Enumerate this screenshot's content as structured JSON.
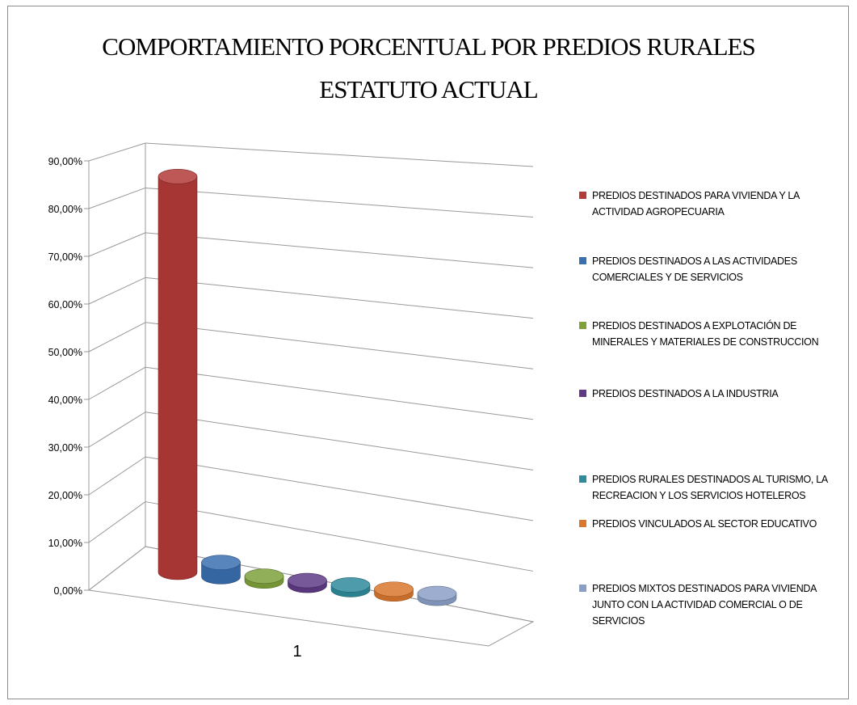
{
  "chart_data": {
    "type": "bar",
    "title_line1": "COMPORTAMIENTO PORCENTUAL  POR PREDIOS RURALES",
    "title_line2": "ESTATUTO ACTUAL",
    "categories": [
      "1"
    ],
    "ylim": [
      0,
      0.9
    ],
    "yticks": [
      "0,00%",
      "10,00%",
      "20,00%",
      "30,00%",
      "40,00%",
      "50,00%",
      "60,00%",
      "70,00%",
      "80,00%",
      "90,00%"
    ],
    "grid": true,
    "legend_position": "right",
    "series": [
      {
        "name": "PREDIOS DESTINADOS PARA VIVIENDA Y LA ACTIVIDAD AGROPECUARIA",
        "legend_lines": [
          "PREDIOS DESTINADOS PARA VIVIENDA Y LA",
          "ACTIVIDAD AGROPECUARIA"
        ],
        "values": [
          0.83
        ],
        "color": "#b33b38"
      },
      {
        "name": "PREDIOS DESTINADOS A LAS ACTIVIDADES COMERCIALES Y DE SERVICIOS",
        "legend_lines": [
          "PREDIOS DESTINADOS A LAS ACTIVIDADES",
          "COMERCIALES Y DE SERVICIOS"
        ],
        "values": [
          0.03
        ],
        "color": "#3a6fb0"
      },
      {
        "name": "PREDIOS DESTINADOS A EXPLOTACIÓN DE MINERALES Y MATERIALES DE CONSTRUCCION",
        "legend_lines": [
          "PREDIOS DESTINADOS A EXPLOTACIÓN DE",
          "MINERALES Y MATERIALES DE CONSTRUCCION"
        ],
        "values": [
          0.005
        ],
        "color": "#7ea13a"
      },
      {
        "name": "PREDIOS DESTINADOS A LA INDUSTRIA",
        "legend_lines": [
          "PREDIOS DESTINADOS A LA INDUSTRIA"
        ],
        "values": [
          0.005
        ],
        "color": "#5f3b86"
      },
      {
        "name": "PREDIOS RURALES DESTINADOS AL TURISMO, LA RECREACION Y LOS SERVICIOS HOTELEROS",
        "legend_lines": [
          "PREDIOS RURALES DESTINADOS AL TURISMO, LA",
          "RECREACION Y LOS SERVICIOS HOTELEROS"
        ],
        "values": [
          0.005
        ],
        "color": "#2f8b9c"
      },
      {
        "name": "PREDIOS VINCULADOS AL SECTOR EDUCATIVO",
        "legend_lines": [
          "PREDIOS VINCULADOS AL SECTOR EDUCATIVO"
        ],
        "values": [
          0.005
        ],
        "color": "#d9772d"
      },
      {
        "name": "PREDIOS MIXTOS DESTINADOS PARA VIVIENDA JUNTO CON LA ACTIVIDAD COMERCIAL O DE SERVICIOS",
        "legend_lines": [
          "PREDIOS MIXTOS DESTINADOS PARA VIVIENDA",
          "JUNTO CON LA ACTIVIDAD COMERCIAL O DE",
          "SERVICIOS"
        ],
        "values": [
          0.005
        ],
        "color": "#8a9fc8"
      }
    ]
  }
}
